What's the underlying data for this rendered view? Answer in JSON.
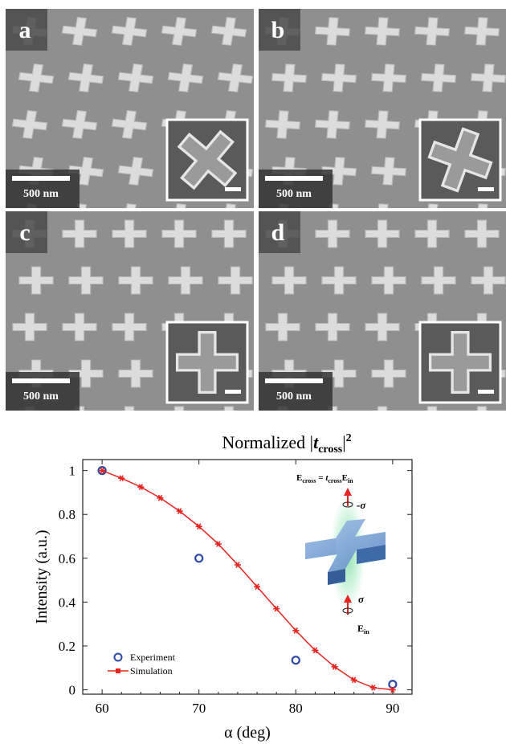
{
  "panels": [
    {
      "label": "a",
      "scale_bar": "500 nm"
    },
    {
      "label": "b",
      "scale_bar": "500 nm"
    },
    {
      "label": "c",
      "scale_bar": "500 nm"
    },
    {
      "label": "d",
      "scale_bar": "500 nm"
    }
  ],
  "colors": {
    "sem_background": "#8f8f8f",
    "sem_cross": "#dcdcdc",
    "simulation": "#e8231f",
    "experiment": "#2b49a6",
    "inset_border": "#ffffff"
  },
  "chart_data": {
    "type": "scatter",
    "title_prefix": "Normalized |",
    "title_var": "t",
    "title_sub": "cross",
    "title_suffix": "|",
    "title_sup": "2",
    "xlabel": "α (deg)",
    "ylabel": "Intensity (a.u.)",
    "xlim": [
      58,
      92
    ],
    "ylim": [
      -0.02,
      1.05
    ],
    "xticks": [
      "60",
      "70",
      "80",
      "90"
    ],
    "yticks": [
      "0",
      "0.2",
      "0.4",
      "0.6",
      "0.8",
      "1"
    ],
    "legend_position": "bottom-left",
    "series": [
      {
        "name": "Experiment",
        "marker": "open-circle",
        "color": "#2b49a6",
        "x": [
          60,
          70,
          80,
          90
        ],
        "y": [
          1.0,
          0.6,
          0.135,
          0.025
        ]
      },
      {
        "name": "Simulation",
        "marker": "star-line",
        "color": "#e8231f",
        "x": [
          60,
          62,
          64,
          66,
          68,
          70,
          72,
          74,
          76,
          78,
          80,
          82,
          84,
          86,
          88,
          90
        ],
        "y": [
          1.0,
          0.965,
          0.925,
          0.875,
          0.815,
          0.745,
          0.665,
          0.57,
          0.47,
          0.37,
          0.27,
          0.18,
          0.105,
          0.045,
          0.01,
          0.0
        ]
      }
    ],
    "inset": {
      "eq_left": "E",
      "eq_left_sub": "cross",
      "eq_mid": " = ",
      "eq_t": "t",
      "eq_t_sub": "cross",
      "eq_right": "E",
      "eq_right_sub": "in",
      "top_label": "-σ",
      "bottom_label": "σ",
      "ein": "E",
      "ein_sub": "in"
    }
  }
}
